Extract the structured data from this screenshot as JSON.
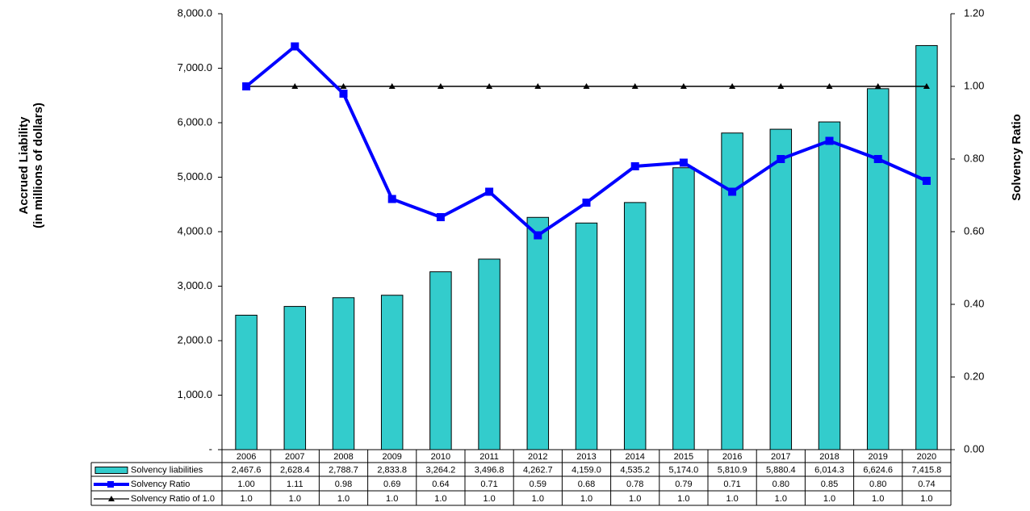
{
  "chart_data": {
    "type": "bar",
    "y_label": [
      "Accrued Liability",
      "(in millions of dollars)"
    ],
    "y2_label": "Solvency Ratio",
    "categories": [
      "2006",
      "2007",
      "2008",
      "2009",
      "2010",
      "2011",
      "2012",
      "2013",
      "2014",
      "2015",
      "2016",
      "2017",
      "2018",
      "2019",
      "2020"
    ],
    "series": [
      {
        "name": "Solvency liabilities",
        "type": "bar",
        "color": "#33CCCC",
        "values": [
          2467.6,
          2628.4,
          2788.7,
          2833.8,
          3264.2,
          3496.8,
          4262.7,
          4159.0,
          4535.2,
          5174.0,
          5810.9,
          5880.4,
          6014.3,
          6624.6,
          7415.8
        ],
        "value_labels": [
          "2,467.6",
          "2,628.4",
          "2,788.7",
          "2,833.8",
          "3,264.2",
          "3,496.8",
          "4,262.7",
          "4,159.0",
          "4,535.2",
          "5,174.0",
          "5,810.9",
          "5,880.4",
          "6,014.3",
          "6,624.6",
          "7,415.8"
        ]
      },
      {
        "name": "Solvency Ratio",
        "type": "line",
        "axis": "y2",
        "color": "#0000FF",
        "marker": "square",
        "values": [
          1.0,
          1.11,
          0.98,
          0.69,
          0.64,
          0.71,
          0.59,
          0.68,
          0.78,
          0.79,
          0.71,
          0.8,
          0.85,
          0.8,
          0.74
        ],
        "value_labels": [
          "1.00",
          "1.11",
          "0.98",
          "0.69",
          "0.64",
          "0.71",
          "0.59",
          "0.68",
          "0.78",
          "0.79",
          "0.71",
          "0.80",
          "0.85",
          "0.80",
          "0.74"
        ]
      },
      {
        "name": "Solvency Ratio of 1.0",
        "type": "line",
        "axis": "y2",
        "color": "#000000",
        "marker": "triangle",
        "values": [
          1,
          1,
          1,
          1,
          1,
          1,
          1,
          1,
          1,
          1,
          1,
          1,
          1,
          1,
          1
        ],
        "value_labels": [
          "1.0",
          "1.0",
          "1.0",
          "1.0",
          "1.0",
          "1.0",
          "1.0",
          "1.0",
          "1.0",
          "1.0",
          "1.0",
          "1.0",
          "1.0",
          "1.0",
          "1.0"
        ]
      }
    ],
    "ylim": [
      0,
      8000
    ],
    "yticks": [
      {
        "value": 0,
        "label": "-"
      },
      {
        "value": 1000,
        "label": "1,000.0"
      },
      {
        "value": 2000,
        "label": "2,000.0"
      },
      {
        "value": 3000,
        "label": "3,000.0"
      },
      {
        "value": 4000,
        "label": "4,000.0"
      },
      {
        "value": 5000,
        "label": "5,000.0"
      },
      {
        "value": 6000,
        "label": "6,000.0"
      },
      {
        "value": 7000,
        "label": "7,000.0"
      },
      {
        "value": 8000,
        "label": "8,000.0"
      }
    ],
    "y2lim": [
      0,
      1.2
    ],
    "y2ticks": [
      {
        "value": 0,
        "label": "0.00"
      },
      {
        "value": 0.2,
        "label": "0.20"
      },
      {
        "value": 0.4,
        "label": "0.40"
      },
      {
        "value": 0.6,
        "label": "0.60"
      },
      {
        "value": 0.8,
        "label": "0.80"
      },
      {
        "value": 1.0,
        "label": "1.00"
      },
      {
        "value": 1.2,
        "label": "1.20"
      }
    ]
  }
}
